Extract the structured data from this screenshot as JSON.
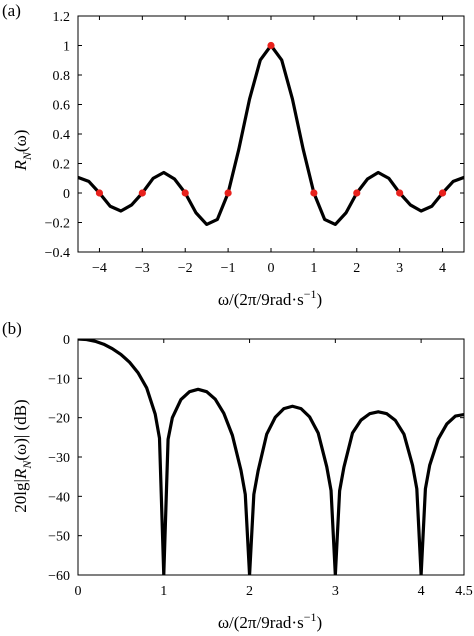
{
  "chart_data": [
    {
      "panel_label": "(a)",
      "type": "line",
      "xlabel_parts": [
        "ω/(2π/9rad·s",
        "−1",
        ")"
      ],
      "ylabel_parts": [
        "R",
        "N",
        "(ω)"
      ],
      "xlim": [
        -4.5,
        4.5
      ],
      "ylim": [
        -0.4,
        1.2
      ],
      "xticks": [
        -4,
        -3,
        -2,
        -1,
        0,
        1,
        2,
        3,
        4
      ],
      "xtick_labels": [
        "−4",
        "−3",
        "−2",
        "−1",
        "0",
        "1",
        "2",
        "3",
        "4"
      ],
      "yticks": [
        -0.4,
        -0.2,
        0,
        0.2,
        0.4,
        0.6,
        0.8,
        1,
        1.2
      ],
      "ytick_labels": [
        "−0.4",
        "−0.2",
        "0",
        "0.2",
        "0.4",
        "0.6",
        "0.8",
        "1",
        "1.2"
      ],
      "grid": false,
      "series": [
        {
          "style": "line",
          "color": "#000000",
          "x": [
            -4.5,
            -4.25,
            -4.0,
            -3.75,
            -3.5,
            -3.25,
            -3.0,
            -2.75,
            -2.5,
            -2.25,
            -2.0,
            -1.75,
            -1.5,
            -1.25,
            -1.0,
            -0.75,
            -0.5,
            -0.25,
            0.0,
            0.25,
            0.5,
            0.75,
            1.0,
            1.25,
            1.5,
            1.75,
            2.0,
            2.25,
            2.5,
            2.75,
            3.0,
            3.25,
            3.5,
            3.75,
            4.0,
            4.25,
            4.5
          ],
          "y": [
            0.106,
            0.079,
            0.0,
            -0.09,
            -0.122,
            -0.081,
            0.0,
            0.099,
            0.139,
            0.095,
            0.0,
            -0.134,
            -0.213,
            -0.179,
            0.0,
            0.297,
            0.637,
            0.901,
            1.0,
            0.901,
            0.637,
            0.297,
            0.0,
            -0.179,
            -0.213,
            -0.134,
            0.0,
            0.095,
            0.139,
            0.099,
            0.0,
            -0.081,
            -0.122,
            -0.09,
            0.0,
            0.079,
            0.106
          ]
        },
        {
          "style": "markers",
          "color": "#e8211c",
          "x": [
            -4,
            -3,
            -2,
            -1,
            0,
            1,
            2,
            3,
            4
          ],
          "y": [
            0,
            0,
            0,
            0,
            1,
            0,
            0,
            0,
            0
          ]
        }
      ]
    },
    {
      "panel_label": "(b)",
      "type": "line",
      "xlabel_parts": [
        "ω/(2π/9rad·s",
        "−1",
        ")"
      ],
      "ylabel_parts": [
        "20lg|R",
        "N",
        "(ω)| (dB)"
      ],
      "xlim": [
        0,
        4.5
      ],
      "ylim": [
        -60,
        0
      ],
      "xticks": [
        0,
        1,
        2,
        3,
        4,
        4.5
      ],
      "xtick_labels": [
        "0",
        "1",
        "2",
        "3",
        "4",
        "4.5"
      ],
      "yticks": [
        -60,
        -50,
        -40,
        -30,
        -20,
        -10,
        0
      ],
      "ytick_labels": [
        "−60",
        "−50",
        "−40",
        "−30",
        "−20",
        "−10",
        "0"
      ],
      "grid": false,
      "series": [
        {
          "style": "line",
          "color": "#000000",
          "x": [
            0.0,
            0.1,
            0.2,
            0.3,
            0.4,
            0.5,
            0.6,
            0.7,
            0.8,
            0.9,
            0.95,
            1.0,
            1.05,
            1.1,
            1.2,
            1.3,
            1.4,
            1.5,
            1.6,
            1.7,
            1.8,
            1.9,
            1.95,
            2.0,
            2.05,
            2.1,
            2.2,
            2.3,
            2.4,
            2.5,
            2.6,
            2.7,
            2.8,
            2.9,
            2.95,
            3.0,
            3.05,
            3.1,
            3.2,
            3.3,
            3.4,
            3.5,
            3.6,
            3.7,
            3.8,
            3.9,
            3.95,
            4.0,
            4.05,
            4.1,
            4.2,
            4.3,
            4.4,
            4.5
          ],
          "y": [
            0.0,
            -0.14,
            -0.58,
            -1.33,
            -2.46,
            -3.92,
            -5.88,
            -8.58,
            -12.4,
            -19.1,
            -25.2,
            -60,
            -25.5,
            -20.0,
            -15.4,
            -13.4,
            -12.8,
            -13.4,
            -15.3,
            -18.9,
            -24.5,
            -33.4,
            -39.5,
            -60,
            -39.5,
            -33.5,
            -24.2,
            -19.9,
            -17.7,
            -17.1,
            -17.7,
            -19.8,
            -23.9,
            -32.5,
            -38.5,
            -60,
            -38.6,
            -32.6,
            -23.9,
            -20.6,
            -19.0,
            -18.5,
            -19.0,
            -20.7,
            -24.2,
            -32.1,
            -38.1,
            -60,
            -38.1,
            -32.1,
            -25.4,
            -21.6,
            -19.6,
            -19.2
          ]
        }
      ]
    }
  ]
}
